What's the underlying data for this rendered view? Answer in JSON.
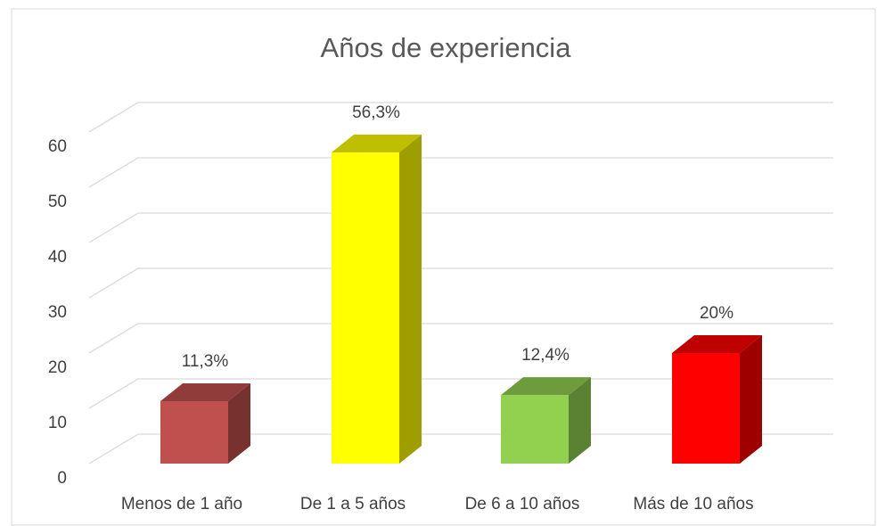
{
  "chart_data": {
    "type": "bar3d",
    "title": "Años de experiencia",
    "categories": [
      "Menos de 1 año",
      "De 1 a 5 años",
      "De 6 a 10 años",
      "Más de 10 años"
    ],
    "values": [
      11.3,
      56.3,
      12.4,
      20
    ],
    "value_labels": [
      "11,3%",
      "56,3%",
      "12,4%",
      "20%"
    ],
    "colors": [
      "#c0504d",
      "#ffff00",
      "#92d050",
      "#ff0000"
    ],
    "ylim": [
      0,
      60
    ],
    "yticks": [
      0,
      10,
      20,
      30,
      40,
      50,
      60
    ],
    "grid": true
  }
}
